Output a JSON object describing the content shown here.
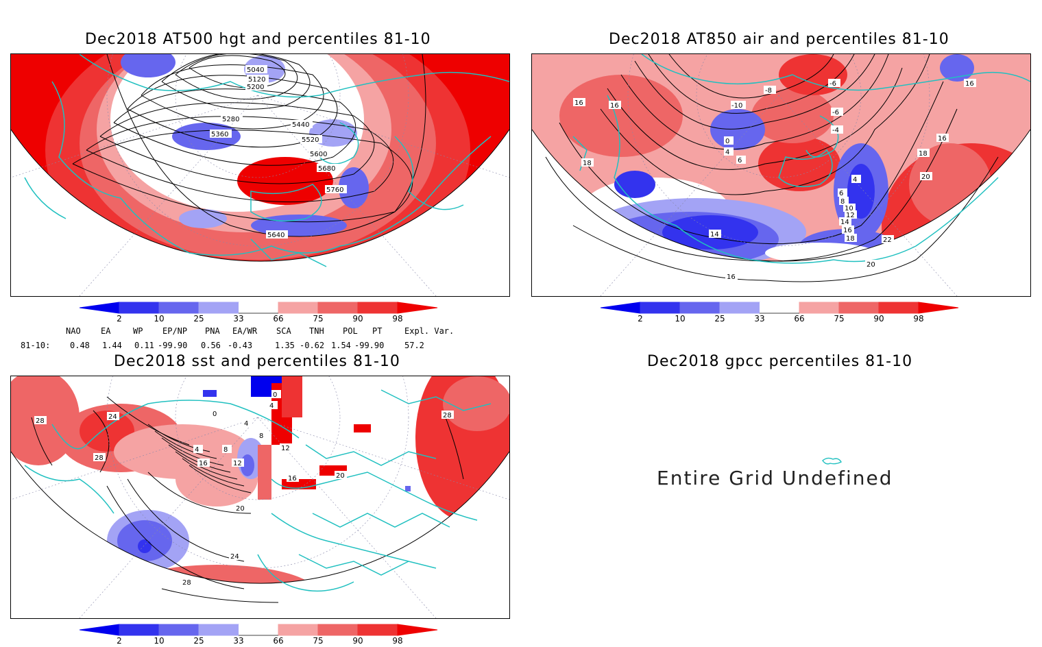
{
  "panels": {
    "hgt": {
      "title": "Dec2018 AT500 hgt and percentiles 81-10",
      "contour_labels": [
        "5040",
        "5120",
        "5200",
        "5280",
        "5360",
        "5440",
        "5520",
        "5600",
        "5680",
        "5760",
        "5640"
      ]
    },
    "air": {
      "title": "Dec2018 AT850 air and percentiles 81-10",
      "contour_labels": [
        "-6",
        "-10",
        "-8",
        "-6",
        "-4",
        "0",
        "4",
        "6",
        "16",
        "16",
        "18",
        "16",
        "16",
        "18",
        "20",
        "4",
        "6",
        "8",
        "10",
        "12",
        "14",
        "16",
        "18",
        "14",
        "16",
        "22",
        "20"
      ]
    },
    "sst": {
      "title": "Dec2018 sst and percentiles 81-10",
      "contour_labels": [
        "28",
        "24",
        "28",
        "16",
        "0",
        "4",
        "8",
        "12",
        "12",
        "8",
        "4",
        "0",
        "4",
        "16",
        "20",
        "20",
        "24",
        "28",
        "28"
      ]
    },
    "gpcc": {
      "title": "Dec2018 gpcc percentiles 81-10",
      "message": "Entire Grid Undefined"
    }
  },
  "colorbar": {
    "labels": [
      "2",
      "10",
      "25",
      "33",
      "66",
      "75",
      "90",
      "98"
    ],
    "colors": [
      "#0000ee",
      "#3333ee",
      "#6666ee",
      "#a3a3f5",
      "#ffffff",
      "#f5a3a3",
      "#ee6666",
      "#ee3333",
      "#ee0000"
    ]
  },
  "indices": {
    "headers": [
      "NAO",
      "EA",
      "WP",
      "EP/NP",
      "PNA",
      "EA/WR",
      "SCA",
      "TNH",
      "POL",
      "PT",
      "Expl. Var."
    ],
    "row_label": "81-10:",
    "values": [
      "0.48",
      "1.44",
      "0.11",
      "-99.90",
      "0.56",
      "-0.43",
      "1.35",
      "-0.62",
      "1.54",
      "-99.90",
      "57.2"
    ]
  }
}
